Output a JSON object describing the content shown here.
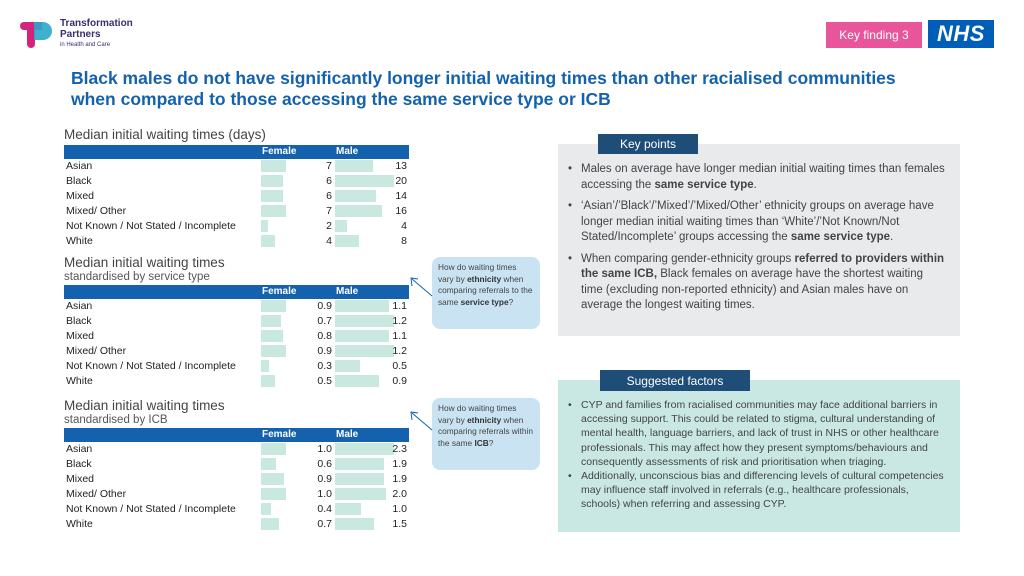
{
  "logo": {
    "line1": "Transformation",
    "line2": "Partners",
    "line3": "in Health and Care"
  },
  "badge": {
    "key_finding": "Key finding 3",
    "nhs": "NHS"
  },
  "headline": "Black males do not have significantly longer initial waiting times than other racialised communities when compared to those accessing the same service type or ICB",
  "tables": [
    {
      "title": "Median initial waiting times (days)",
      "subtitle": "",
      "female_label": "Female",
      "male_label": "Male",
      "rows": [
        {
          "group": "Asian",
          "female": "7",
          "male": "13"
        },
        {
          "group": "Black",
          "female": "6",
          "male": "20"
        },
        {
          "group": "Mixed",
          "female": "6",
          "male": "14"
        },
        {
          "group": "Mixed/ Other",
          "female": "7",
          "male": "16"
        },
        {
          "group": "Not Known / Not Stated / Incomplete",
          "female": "2",
          "male": "4"
        },
        {
          "group": "White",
          "female": "4",
          "male": "8"
        }
      ]
    },
    {
      "title": "Median initial waiting times",
      "subtitle": "standardised by service type",
      "female_label": "Female",
      "male_label": "Male",
      "rows": [
        {
          "group": "Asian",
          "female": "0.9",
          "male": "1.1"
        },
        {
          "group": "Black",
          "female": "0.7",
          "male": "1.2"
        },
        {
          "group": "Mixed",
          "female": "0.8",
          "male": "1.1"
        },
        {
          "group": "Mixed/ Other",
          "female": "0.9",
          "male": "1.2"
        },
        {
          "group": "Not Known / Not Stated / Incomplete",
          "female": "0.3",
          "male": "0.5"
        },
        {
          "group": "White",
          "female": "0.5",
          "male": "0.9"
        }
      ]
    },
    {
      "title": "Median initial waiting times",
      "subtitle": "standardised by ICB",
      "female_label": "Female",
      "male_label": "Male",
      "rows": [
        {
          "group": "Asian",
          "female": "1.0",
          "male": "2.3"
        },
        {
          "group": "Black",
          "female": "0.6",
          "male": "1.9"
        },
        {
          "group": "Mixed",
          "female": "0.9",
          "male": "1.9"
        },
        {
          "group": "Mixed/ Other",
          "female": "1.0",
          "male": "2.0"
        },
        {
          "group": "Not Known / Not Stated / Incomplete",
          "female": "0.4",
          "male": "1.0"
        },
        {
          "group": "White",
          "female": "0.7",
          "male": "1.5"
        }
      ]
    }
  ],
  "callouts": [
    {
      "pre": "How do waiting times vary by ",
      "b1": "ethnicity",
      "mid": " when comparing referrals to the same ",
      "b2": "service type",
      "post": "?"
    },
    {
      "pre": "How do waiting times vary by ",
      "b1": "ethnicity",
      "mid": " when comparing referrals within the same ",
      "b2": "ICB",
      "post": "?"
    }
  ],
  "key_points": {
    "header": "Key points",
    "items": [
      {
        "a": "Males on average have longer median initial waiting times than females accessing the ",
        "b": "same service type",
        "c": "."
      },
      {
        "a": "‘Asian’/’Black’/’Mixed’/’Mixed/Other’ ethnicity groups on average have longer median initial waiting times than ‘White’/’Not Known/Not Stated/Incomplete’ groups accessing the ",
        "b": "same service type",
        "c": "."
      },
      {
        "a": "When comparing gender-ethnicity groups ",
        "b": "referred to providers within the same ICB,",
        "c": " Black females on average have the shortest waiting time (excluding non-reported ethnicity) and Asian males have on average the longest waiting times."
      }
    ]
  },
  "suggested_factors": {
    "header": "Suggested factors",
    "items": [
      "CYP and families from racialised communities may face additional barriers in accessing support. This could be related to stigma, cultural understanding of mental health, language barriers, and lack of trust in NHS or other healthcare professionals. This may affect how they present symptoms/behaviours and consequently assessments of risk and prioritisation when triaging.",
      "Additionally, unconscious bias and differencing levels of cultural competencies may influence staff involved in referrals (e.g., healthcare professionals, schools) when referring and assessing CYP."
    ]
  }
}
